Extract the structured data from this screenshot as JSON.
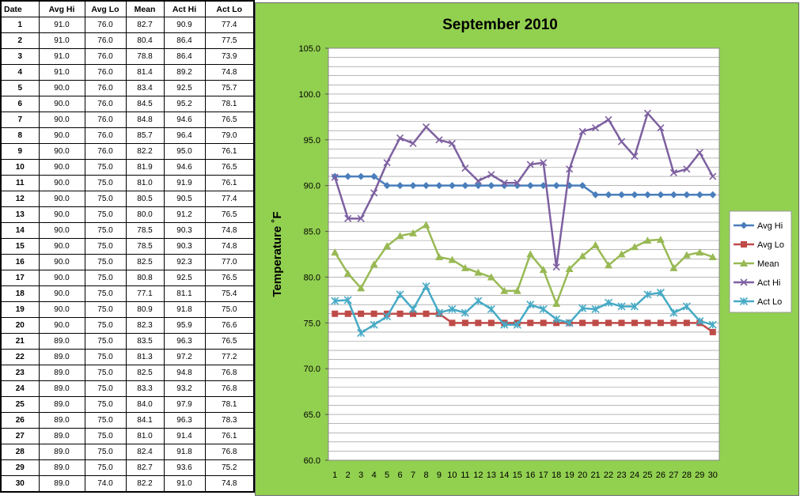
{
  "table": {
    "headers": [
      "Date",
      "Avg Hi",
      "Avg Lo",
      "Mean",
      "Act Hi",
      "Act Lo"
    ],
    "rows": [
      [
        "1",
        "91.0",
        "76.0",
        "82.7",
        "90.9",
        "77.4"
      ],
      [
        "2",
        "91.0",
        "76.0",
        "80.4",
        "86.4",
        "77.5"
      ],
      [
        "3",
        "91.0",
        "76.0",
        "78.8",
        "86.4",
        "73.9"
      ],
      [
        "4",
        "91.0",
        "76.0",
        "81.4",
        "89.2",
        "74.8"
      ],
      [
        "5",
        "90.0",
        "76.0",
        "83.4",
        "92.5",
        "75.7"
      ],
      [
        "6",
        "90.0",
        "76.0",
        "84.5",
        "95.2",
        "78.1"
      ],
      [
        "7",
        "90.0",
        "76.0",
        "84.8",
        "94.6",
        "76.5"
      ],
      [
        "8",
        "90.0",
        "76.0",
        "85.7",
        "96.4",
        "79.0"
      ],
      [
        "9",
        "90.0",
        "76.0",
        "82.2",
        "95.0",
        "76.1"
      ],
      [
        "10",
        "90.0",
        "75.0",
        "81.9",
        "94.6",
        "76.5"
      ],
      [
        "11",
        "90.0",
        "75.0",
        "81.0",
        "91.9",
        "76.1"
      ],
      [
        "12",
        "90.0",
        "75.0",
        "80.5",
        "90.5",
        "77.4"
      ],
      [
        "13",
        "90.0",
        "75.0",
        "80.0",
        "91.2",
        "76.5"
      ],
      [
        "14",
        "90.0",
        "75.0",
        "78.5",
        "90.3",
        "74.8"
      ],
      [
        "15",
        "90.0",
        "75.0",
        "78.5",
        "90.3",
        "74.8"
      ],
      [
        "16",
        "90.0",
        "75.0",
        "82.5",
        "92.3",
        "77.0"
      ],
      [
        "17",
        "90.0",
        "75.0",
        "80.8",
        "92.5",
        "76.5"
      ],
      [
        "18",
        "90.0",
        "75.0",
        "77.1",
        "81.1",
        "75.4"
      ],
      [
        "19",
        "90.0",
        "75.0",
        "80.9",
        "91.8",
        "75.0"
      ],
      [
        "20",
        "90.0",
        "75.0",
        "82.3",
        "95.9",
        "76.6"
      ],
      [
        "21",
        "89.0",
        "75.0",
        "83.5",
        "96.3",
        "76.5"
      ],
      [
        "22",
        "89.0",
        "75.0",
        "81.3",
        "97.2",
        "77.2"
      ],
      [
        "23",
        "89.0",
        "75.0",
        "82.5",
        "94.8",
        "76.8"
      ],
      [
        "24",
        "89.0",
        "75.0",
        "83.3",
        "93.2",
        "76.8"
      ],
      [
        "25",
        "89.0",
        "75.0",
        "84.0",
        "97.9",
        "78.1"
      ],
      [
        "26",
        "89.0",
        "75.0",
        "84.1",
        "96.3",
        "78.3"
      ],
      [
        "27",
        "89.0",
        "75.0",
        "81.0",
        "91.4",
        "76.1"
      ],
      [
        "28",
        "89.0",
        "75.0",
        "82.4",
        "91.8",
        "76.8"
      ],
      [
        "29",
        "89.0",
        "75.0",
        "82.7",
        "93.6",
        "75.2"
      ],
      [
        "30",
        "89.0",
        "74.0",
        "82.2",
        "91.0",
        "74.8"
      ]
    ]
  },
  "chart_data": {
    "type": "line",
    "title": "September 2010",
    "xlabel": "",
    "ylabel": "Temperature ˚F",
    "x": [
      1,
      2,
      3,
      4,
      5,
      6,
      7,
      8,
      9,
      10,
      11,
      12,
      13,
      14,
      15,
      16,
      17,
      18,
      19,
      20,
      21,
      22,
      23,
      24,
      25,
      26,
      27,
      28,
      29,
      30
    ],
    "ylim": [
      60,
      105
    ],
    "yticks": [
      "60.0",
      "65.0",
      "70.0",
      "75.0",
      "80.0",
      "85.0",
      "90.0",
      "95.0",
      "100.0",
      "105.0"
    ],
    "grid": true,
    "legend_position": "right",
    "series": [
      {
        "name": "Avg Hi",
        "color": "#4a7ebb",
        "marker": "diamond",
        "values": [
          91,
          91,
          91,
          91,
          90,
          90,
          90,
          90,
          90,
          90,
          90,
          90,
          90,
          90,
          90,
          90,
          90,
          90,
          90,
          90,
          89,
          89,
          89,
          89,
          89,
          89,
          89,
          89,
          89,
          89
        ]
      },
      {
        "name": "Avg Lo",
        "color": "#be4b48",
        "marker": "square",
        "values": [
          76,
          76,
          76,
          76,
          76,
          76,
          76,
          76,
          76,
          75,
          75,
          75,
          75,
          75,
          75,
          75,
          75,
          75,
          75,
          75,
          75,
          75,
          75,
          75,
          75,
          75,
          75,
          75,
          75,
          74
        ]
      },
      {
        "name": "Mean",
        "color": "#98b954",
        "marker": "triangle",
        "values": [
          82.7,
          80.4,
          78.8,
          81.4,
          83.4,
          84.5,
          84.8,
          85.7,
          82.2,
          81.9,
          81.0,
          80.5,
          80.0,
          78.5,
          78.5,
          82.5,
          80.8,
          77.1,
          80.9,
          82.3,
          83.5,
          81.3,
          82.5,
          83.3,
          84.0,
          84.1,
          81.0,
          82.4,
          82.7,
          82.2
        ]
      },
      {
        "name": "Act Hi",
        "color": "#7d60a0",
        "marker": "x",
        "values": [
          90.9,
          86.4,
          86.4,
          89.2,
          92.5,
          95.2,
          94.6,
          96.4,
          95.0,
          94.6,
          91.9,
          90.5,
          91.2,
          90.3,
          90.3,
          92.3,
          92.5,
          81.1,
          91.8,
          95.9,
          96.3,
          97.2,
          94.8,
          93.2,
          97.9,
          96.3,
          91.4,
          91.8,
          93.6,
          91.0
        ]
      },
      {
        "name": "Act Lo",
        "color": "#46aac5",
        "marker": "star",
        "values": [
          77.4,
          77.5,
          73.9,
          74.8,
          75.7,
          78.1,
          76.5,
          79.0,
          76.1,
          76.5,
          76.1,
          77.4,
          76.5,
          74.8,
          74.8,
          77.0,
          76.5,
          75.4,
          75.0,
          76.6,
          76.5,
          77.2,
          76.8,
          76.8,
          78.1,
          78.3,
          76.1,
          76.8,
          75.2,
          74.8
        ]
      }
    ]
  }
}
